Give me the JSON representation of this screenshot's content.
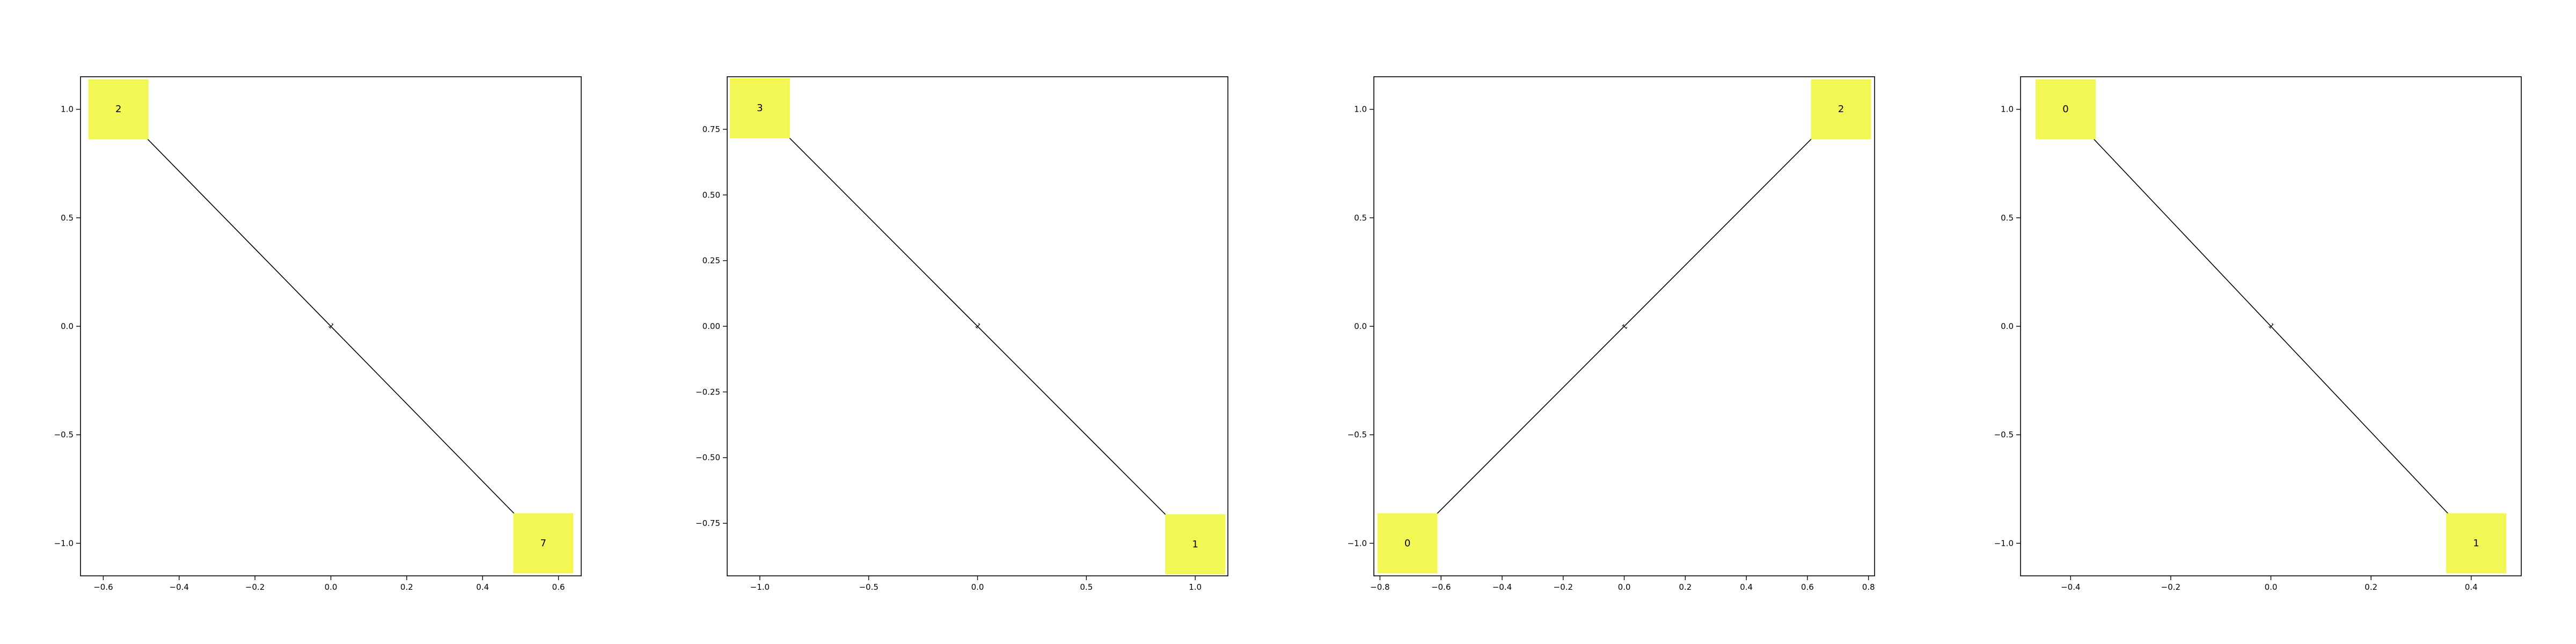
{
  "colors": {
    "node_fill": "#f3f753",
    "edge": "#000000",
    "axes": "#000000",
    "background": "#ffffff"
  },
  "chart_data": [
    {
      "type": "network",
      "xlim": [
        -0.66,
        0.66
      ],
      "ylim": [
        -1.15,
        1.15
      ],
      "xticks": [
        -0.6,
        -0.4,
        -0.2,
        0.0,
        0.2,
        0.4,
        0.6
      ],
      "xtick_labels": [
        "−0.6",
        "−0.4",
        "−0.2",
        "0.0",
        "0.2",
        "0.4",
        "0.6"
      ],
      "yticks": [
        1.0,
        0.5,
        0.0,
        -0.5,
        -1.0
      ],
      "ytick_labels": [
        "1.0",
        "0.5",
        "0.0",
        "−0.5",
        "−1.0"
      ],
      "nodes": [
        {
          "label": "2",
          "x": -0.56,
          "y": 1.0
        },
        {
          "label": "7",
          "x": 0.56,
          "y": -1.0
        }
      ],
      "edges": [
        {
          "from": 0,
          "to": 1,
          "label": "1"
        }
      ]
    },
    {
      "type": "network",
      "xlim": [
        -1.15,
        1.15
      ],
      "ylim": [
        -0.95,
        0.95
      ],
      "xticks": [
        -1.0,
        -0.5,
        0.0,
        0.5,
        1.0
      ],
      "xtick_labels": [
        "−1.0",
        "−0.5",
        "0.0",
        "0.5",
        "1.0"
      ],
      "yticks": [
        0.75,
        0.5,
        0.25,
        0.0,
        -0.25,
        -0.5,
        -0.75
      ],
      "ytick_labels": [
        "0.75",
        "0.50",
        "0.25",
        "0.00",
        "−0.25",
        "−0.50",
        "−0.75"
      ],
      "nodes": [
        {
          "label": "3",
          "x": -1.0,
          "y": 0.83
        },
        {
          "label": "1",
          "x": 1.0,
          "y": -0.83
        }
      ],
      "edges": [
        {
          "from": 0,
          "to": 1,
          "label": "1"
        }
      ]
    },
    {
      "type": "network",
      "xlim": [
        -0.82,
        0.82
      ],
      "ylim": [
        -1.15,
        1.15
      ],
      "xticks": [
        -0.8,
        -0.6,
        -0.4,
        -0.2,
        0.0,
        0.2,
        0.4,
        0.6,
        0.8
      ],
      "xtick_labels": [
        "−0.8",
        "−0.6",
        "−0.4",
        "−0.2",
        "0.0",
        "0.2",
        "0.4",
        "0.6",
        "0.8"
      ],
      "yticks": [
        1.0,
        0.5,
        0.0,
        -0.5,
        -1.0
      ],
      "ytick_labels": [
        "1.0",
        "0.5",
        "0.0",
        "−0.5",
        "−1.0"
      ],
      "nodes": [
        {
          "label": "2",
          "x": 0.71,
          "y": 1.0
        },
        {
          "label": "0",
          "x": -0.71,
          "y": -1.0
        }
      ],
      "edges": [
        {
          "from": 0,
          "to": 1,
          "label": "1"
        }
      ]
    },
    {
      "type": "network",
      "xlim": [
        -0.5,
        0.5
      ],
      "ylim": [
        -1.15,
        1.15
      ],
      "xticks": [
        -0.4,
        -0.2,
        0.0,
        0.2,
        0.4
      ],
      "xtick_labels": [
        "−0.4",
        "−0.2",
        "0.0",
        "0.2",
        "0.4"
      ],
      "yticks": [
        1.0,
        0.5,
        0.0,
        -0.5,
        -1.0
      ],
      "ytick_labels": [
        "1.0",
        "0.5",
        "0.0",
        "−0.5",
        "−1.0"
      ],
      "nodes": [
        {
          "label": "0",
          "x": -0.41,
          "y": 1.0
        },
        {
          "label": "1",
          "x": 0.41,
          "y": -1.0
        }
      ],
      "edges": [
        {
          "from": 0,
          "to": 1,
          "label": "1"
        }
      ]
    }
  ]
}
